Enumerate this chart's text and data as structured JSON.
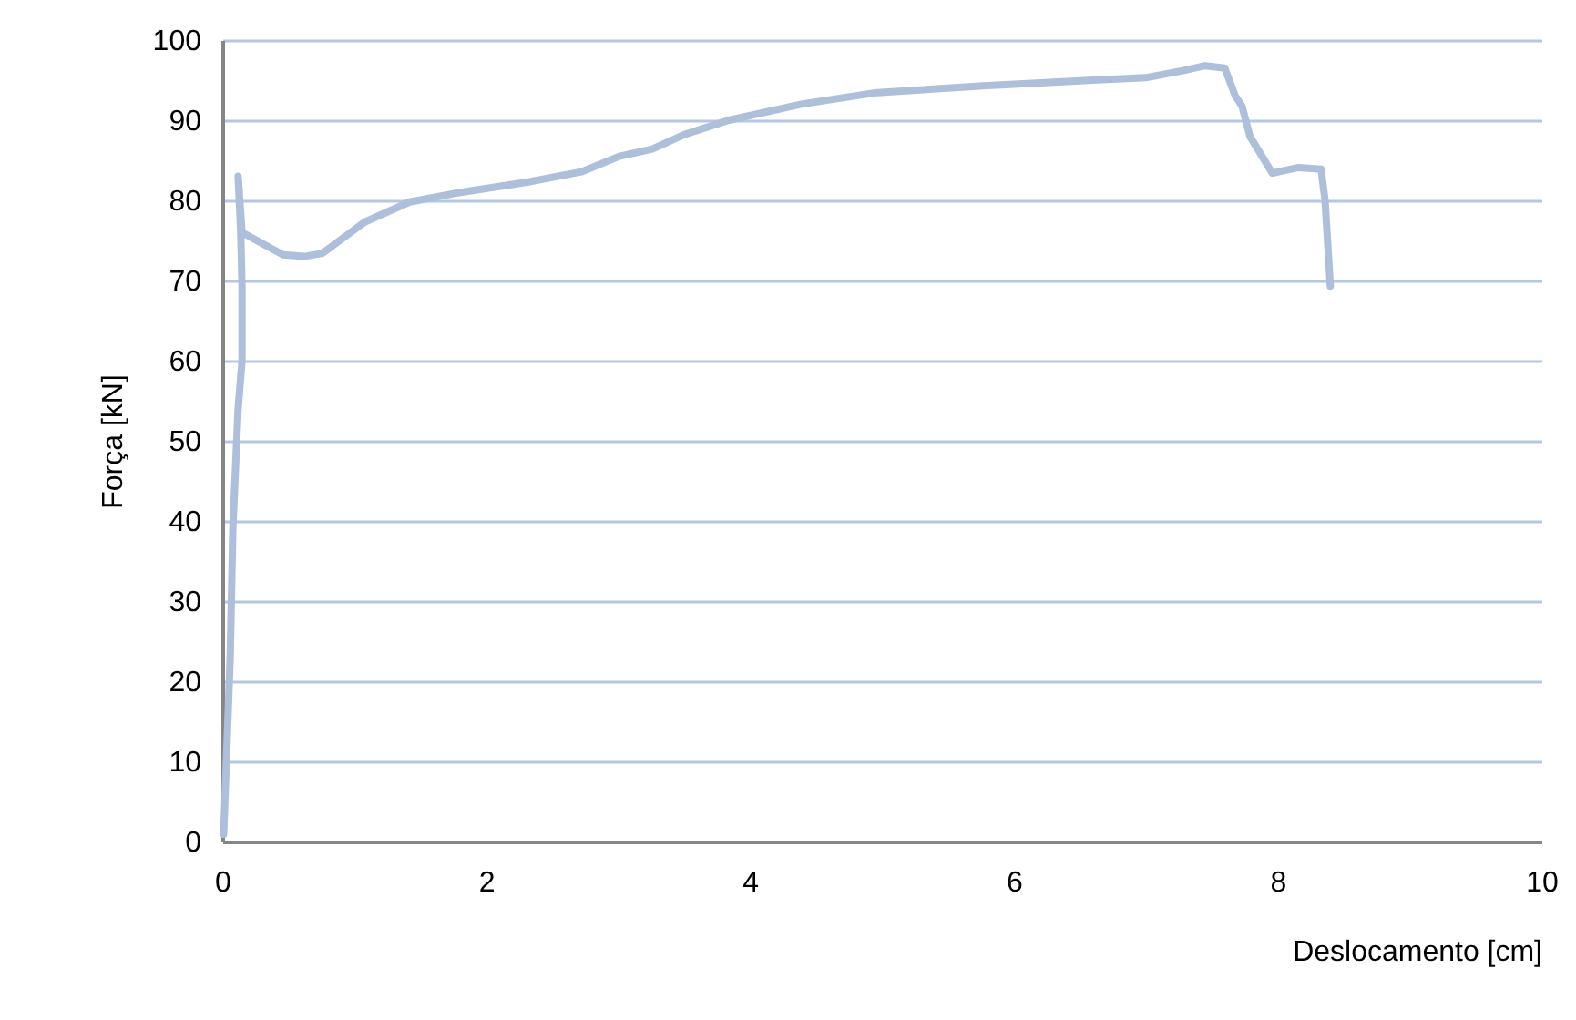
{
  "chart_data": {
    "type": "line",
    "xlabel": "Deslocamento [cm]",
    "ylabel": "Força [kN]",
    "xlim": [
      0,
      10
    ],
    "xticks": [
      0,
      2,
      4,
      6,
      8,
      10
    ],
    "ylim": [
      0,
      100
    ],
    "yticks": [
      0,
      10,
      20,
      30,
      40,
      50,
      60,
      70,
      80,
      90,
      100
    ],
    "grid": "y",
    "marker": "none",
    "line_style": "solid",
    "series": [
      {
        "color": "#adbfdb",
        "x": [
          0.01,
          0.03,
          0.06,
          0.08,
          0.12,
          0.15,
          0.15,
          0.14,
          0.12,
          0.15,
          0.46,
          0.62,
          0.76,
          1.08,
          1.42,
          1.77,
          2.32,
          2.73,
          3.01,
          3.26,
          3.5,
          3.84,
          4.39,
          4.94,
          5.77,
          6.6,
          7.0,
          7.29,
          7.45,
          7.6,
          7.68,
          7.73,
          7.79,
          7.96,
          8.16,
          8.33,
          8.36,
          8.4
        ],
        "values": [
          0.9,
          9.5,
          23,
          39,
          54,
          60,
          69,
          76,
          83,
          76,
          73.2,
          73,
          73.4,
          77.3,
          79.8,
          80.9,
          82.3,
          83.6,
          85.5,
          86.4,
          88.2,
          90,
          92,
          93.4,
          94.3,
          95,
          95.3,
          96.2,
          96.8,
          96.5,
          93,
          91.8,
          88,
          83.4,
          84.1,
          83.9,
          80,
          69.3
        ]
      }
    ]
  }
}
